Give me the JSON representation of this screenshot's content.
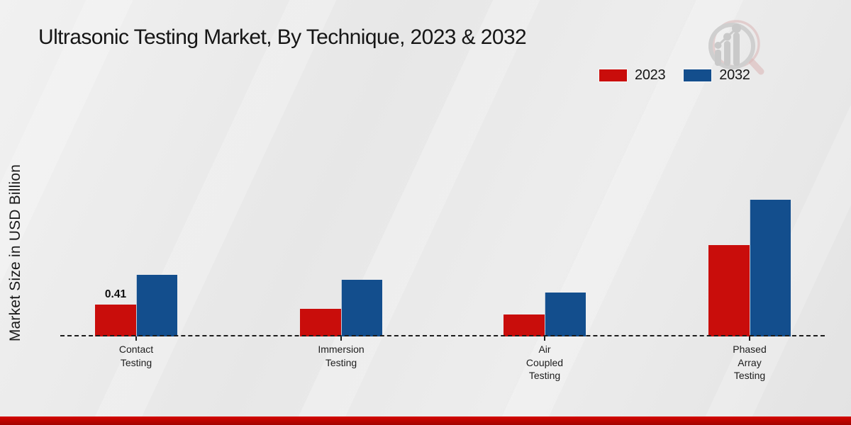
{
  "title": "Ultrasonic Testing Market, By Technique, 2023 & 2032",
  "y_axis_label": "Market Size in USD Billion",
  "legend": {
    "items": [
      {
        "label": "2023",
        "color": "#c90d0b"
      },
      {
        "label": "2032",
        "color": "#134e8d"
      }
    ]
  },
  "colors": {
    "series_2023": "#c90d0b",
    "series_2032": "#134e8d",
    "axis_line": "#1c1c1c",
    "footer_band_top": "#d40600",
    "footer_band_bottom": "#a30300",
    "background": "#e9e9e9"
  },
  "icons": {
    "logo_watermark": "magnifier-growth-chart-watermark"
  },
  "chart_data": {
    "type": "bar",
    "title": "Ultrasonic Testing Market, By Technique, 2023 & 2032",
    "xlabel": "",
    "ylabel": "Market Size in USD Billion",
    "categories": [
      "Contact Testing",
      "Immersion Testing",
      "Air Coupled Testing",
      "Phased Array Testing"
    ],
    "category_label_lines": [
      [
        "Contact",
        "Testing"
      ],
      [
        "Immersion",
        "Testing"
      ],
      [
        "Air",
        "Coupled",
        "Testing"
      ],
      [
        "Phased",
        "Array",
        "Testing"
      ]
    ],
    "series": [
      {
        "name": "2023",
        "color": "#c90d0b",
        "values": [
          0.41,
          0.35,
          0.28,
          1.17
        ]
      },
      {
        "name": "2032",
        "color": "#134e8d",
        "values": [
          0.79,
          0.73,
          0.56,
          1.75
        ]
      }
    ],
    "data_labels": [
      {
        "series_index": 0,
        "category_index": 0,
        "text": "0.41"
      }
    ],
    "ylim": [
      0,
      2.0
    ],
    "grid": false,
    "y_axis_ticks_visible": false,
    "baseline_style": "dashed",
    "legend_position": "top-right"
  }
}
